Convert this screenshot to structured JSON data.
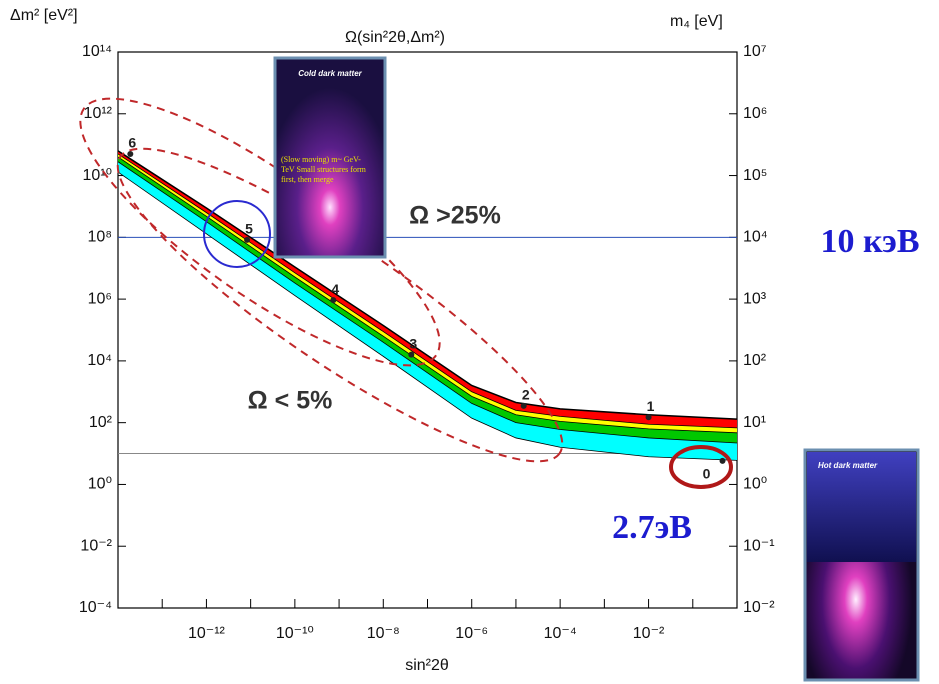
{
  "chart_data": {
    "type": "line",
    "title": "Ω(sin²2θ,Δm²)",
    "xlabel": "sin²2θ",
    "ylabel": "Δm² [eV²]",
    "y2label": "m₄ [eV]",
    "xscale": "log",
    "yscale": "log",
    "y2scale": "log",
    "xlim": [
      1e-14,
      1
    ],
    "ylim": [
      0.0001,
      100000000000000.0
    ],
    "y2lim": [
      0.01,
      10000000.0
    ],
    "xticks": [
      {
        "value": 1e-12,
        "label": "10⁻¹²"
      },
      {
        "value": 1e-10,
        "label": "10⁻¹⁰"
      },
      {
        "value": 1e-08,
        "label": "10⁻⁸"
      },
      {
        "value": 1e-06,
        "label": "10⁻⁶"
      },
      {
        "value": 0.0001,
        "label": "10⁻⁴"
      },
      {
        "value": 0.01,
        "label": "10⁻²"
      }
    ],
    "xminor": [
      1e-13,
      1e-11,
      1e-09,
      1e-07,
      1e-05,
      0.001,
      0.1
    ],
    "yticks": [
      {
        "value": 0.0001,
        "label": "10⁻⁴"
      },
      {
        "value": 0.01,
        "label": "10⁻²"
      },
      {
        "value": 1,
        "label": "10⁰"
      },
      {
        "value": 100,
        "label": "10²"
      },
      {
        "value": 10000,
        "label": "10⁴"
      },
      {
        "value": 1000000.0,
        "label": "10⁶"
      },
      {
        "value": 100000000.0,
        "label": "10⁸"
      },
      {
        "value": 10000000000.0,
        "label": "10¹⁰"
      },
      {
        "value": 1000000000000.0,
        "label": "10¹²"
      },
      {
        "value": 100000000000000.0,
        "label": "10¹⁴"
      }
    ],
    "y2ticks": [
      {
        "value": 0.01,
        "label": "10⁻²"
      },
      {
        "value": 0.1,
        "label": "10⁻¹"
      },
      {
        "value": 1,
        "label": "10⁰"
      },
      {
        "value": 10,
        "label": "10¹"
      },
      {
        "value": 100,
        "label": "10²"
      },
      {
        "value": 1000,
        "label": "10³"
      },
      {
        "value": 10000,
        "label": "10⁴"
      },
      {
        "value": 100000,
        "label": "10⁵"
      },
      {
        "value": 1000000.0,
        "label": "10⁶"
      },
      {
        "value": 10000000.0,
        "label": "10⁷"
      }
    ],
    "x": [
      1e-14,
      1e-12,
      1e-10,
      1e-08,
      1e-06,
      1e-05,
      0.0001,
      0.01,
      1
    ],
    "series": [
      {
        "color": "#000000",
        "values": [
          63000000000.0,
          890000000.0,
          11000000.0,
          140000.0,
          1600,
          450,
          280,
          180,
          130
        ]
      },
      {
        "color": "#000000",
        "values": [
          50000000000.0,
          630000000.0,
          7100000.0,
          89000.0,
          1000,
          250,
          160,
          89,
          68
        ]
      },
      {
        "color": "#000000",
        "values": [
          40000000000.0,
          480000000.0,
          5200000.0,
          63000.0,
          710,
          180,
          110,
          63,
          47
        ]
      },
      {
        "color": "#000000",
        "values": [
          28000000000.0,
          320000000.0,
          3300000.0,
          40000.0,
          420,
          100,
          60,
          32,
          22
        ]
      },
      {
        "color": "#000000",
        "values": [
          13000000000.0,
          130000000.0,
          1300000.0,
          14000.0,
          140,
          32,
          16,
          7.9,
          6
        ]
      }
    ],
    "band_colors": [
      "#ff0000",
      "#ffff00",
      "#00c800",
      "#00ffff"
    ],
    "points": {
      "labels": [
        "6",
        "5",
        "4",
        "3",
        "2",
        "1",
        "0"
      ],
      "x": [
        1.9e-14,
        8.3e-12,
        7.4e-10,
        4.3e-08,
        1.5e-05,
        0.01,
        0.47
      ],
      "y": [
        50000000000.0,
        83000000.0,
        930000.0,
        16000.0,
        350,
        150,
        5.8
      ]
    },
    "hlines": [
      {
        "value": 100000000.0,
        "color": "#2a4fb8"
      },
      {
        "value": 10,
        "color": "#888888"
      }
    ],
    "annotations": [
      "Ω >25%",
      "Ω < 5%",
      "10 кэВ",
      "2.7эВ"
    ],
    "insets": {
      "cold": {
        "title": "Cold dark matter",
        "caption": [
          "(Slow moving) m~ GeV-",
          "TeV  Small structures form",
          "first, then merge"
        ]
      },
      "hot": {
        "title": "Hot dark matter"
      }
    }
  }
}
